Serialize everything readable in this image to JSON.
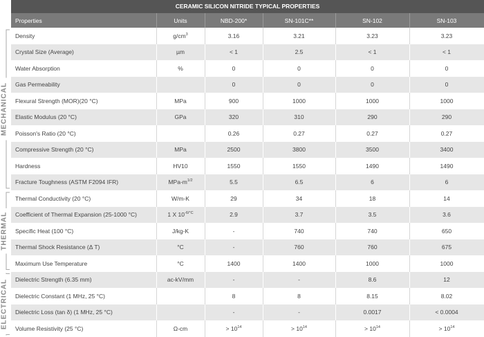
{
  "title": "CERAMIC SILICON NITRIDE TYPICAL PROPERTIES",
  "header": [
    "Properties",
    "Units",
    "NBD-200*",
    "SN-101C**",
    "SN-102",
    "SN-103"
  ],
  "sections": [
    {
      "label": "MECHANICAL",
      "rows": [
        [
          "Density",
          {
            "base": "g/cm",
            "sup": "3"
          },
          "3.16",
          "3.21",
          "3.23",
          "3.23"
        ],
        [
          "Crystal Size (Average)",
          "µm",
          "< 1",
          "2.5",
          "< 1",
          "< 1"
        ],
        [
          "Water Absorption",
          "%",
          "0",
          "0",
          "0",
          "0"
        ],
        [
          "Gas Permeability",
          null,
          "0",
          "0",
          "0",
          "0"
        ],
        [
          "Flexural Strength (MOR)(20 °C)",
          "MPa",
          "900",
          "1000",
          "1000",
          "1000"
        ],
        [
          "Elastic Modulus (20 °C)",
          "GPa",
          "320",
          "310",
          "290",
          "290"
        ],
        [
          "Poisson's Ratio (20 °C)",
          null,
          "0.26",
          "0.27",
          "0.27",
          "0.27"
        ],
        [
          "Compressive Strength (20 °C)",
          "MPa",
          "2500",
          "3800",
          "3500",
          "3400"
        ],
        [
          "Hardness",
          "HV10",
          "1550",
          "1550",
          "1490",
          "1490"
        ],
        [
          "Fracture Toughness (ASTM F2094 IFR)",
          {
            "base": "MPa-m",
            "sup": "1/2"
          },
          "5.5",
          "6.5",
          "6",
          "6"
        ]
      ]
    },
    {
      "label": "THERMAL",
      "rows": [
        [
          "Thermal Conductivity (20 °C)",
          "W/m-K",
          "29",
          "34",
          "18",
          "14"
        ],
        [
          "Coefficient of Thermal Expansion (25-1000 °C)",
          {
            "base": "1 X 10",
            "sup": "-6/°C"
          },
          "2.9",
          "3.7",
          "3.5",
          "3.6"
        ],
        [
          "Specific Heat (100 °C)",
          "J/kg-K",
          "-",
          "740",
          "740",
          "650"
        ],
        [
          "Thermal Shock Resistance (Δ T)",
          "°C",
          "-",
          "760",
          "760",
          "675"
        ],
        [
          "Maximum Use Temperature",
          "°C",
          "1400",
          "1400",
          "1000",
          "1000"
        ]
      ]
    },
    {
      "label": "ELECTRICAL",
      "rows": [
        [
          "Dielectric Strength (6.35 mm)",
          "ac-kV/mm",
          "-",
          "-",
          "8.6",
          "12"
        ],
        [
          "Dielectric Constant (1 MHz, 25 °C)",
          null,
          "8",
          "8",
          "8.15",
          "8.02"
        ],
        [
          "Dielectric Loss (tan δ) (1 MHz, 25 °C)",
          null,
          "-",
          "-",
          "0.0017",
          "< 0.0004"
        ],
        [
          "Volume Resistivity (25 °C)",
          "Ω-cm",
          {
            "base": "> 10",
            "sup": "14"
          },
          {
            "base": "> 10",
            "sup": "14"
          },
          {
            "base": "> 10",
            "sup": "14"
          },
          {
            "base": "> 10",
            "sup": "14"
          }
        ]
      ]
    }
  ]
}
